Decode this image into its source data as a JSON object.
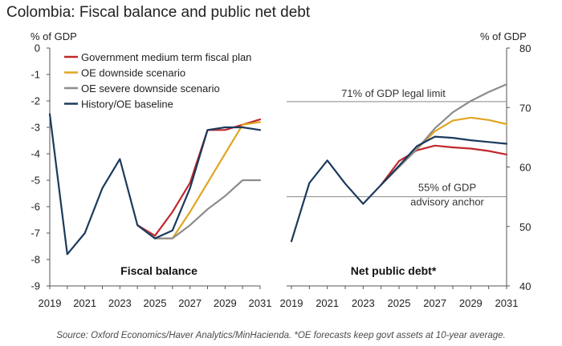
{
  "title": "Colombia: Fiscal balance and public net debt",
  "source": "Source: Oxford Economics/Haver Analytics/MinHacienda. *OE forecasts keep govt assets at 10-year average.",
  "colors": {
    "government": "#c0282d",
    "oe_downside": "#e0a624",
    "oe_severe": "#8c8c8c",
    "history": "#1b3a5c",
    "axis": "#555555",
    "reference": "#888888"
  },
  "chart_data": [
    {
      "type": "line",
      "title": "Fiscal balance",
      "ylabel": "% of GDP",
      "ylim": [
        -9,
        0
      ],
      "yticks": [
        0,
        -1,
        -2,
        -3,
        -4,
        -5,
        -6,
        -7,
        -8,
        -9
      ],
      "xlim": [
        2019,
        2031
      ],
      "xtick_labels": [
        "2019",
        "2021",
        "2023",
        "2025",
        "2027",
        "2029",
        "2031"
      ],
      "legend": [
        "Government medium term fiscal plan",
        "OE downside scenario",
        "OE severe downside scenario",
        "History/OE baseline"
      ],
      "series": [
        {
          "name": "Government medium term fiscal plan",
          "key": "government",
          "x": [
            2024,
            2025,
            2026,
            2027,
            2028,
            2029,
            2030,
            2031
          ],
          "values": [
            -6.7,
            -7.1,
            -6.2,
            -5.1,
            -3.1,
            -3.1,
            -2.9,
            -2.7
          ]
        },
        {
          "name": "OE downside scenario",
          "key": "oe_downside",
          "x": [
            2024,
            2025,
            2026,
            2027,
            2028,
            2029,
            2030,
            2031
          ],
          "values": [
            -6.7,
            -7.2,
            -7.2,
            -6.2,
            -5.1,
            -4.0,
            -2.9,
            -2.8
          ]
        },
        {
          "name": "OE severe downside scenario",
          "key": "oe_severe",
          "x": [
            2024,
            2025,
            2026,
            2027,
            2028,
            2029,
            2030,
            2031
          ],
          "values": [
            -6.7,
            -7.2,
            -7.2,
            -6.7,
            -6.1,
            -5.6,
            -5.0,
            -5.0
          ]
        },
        {
          "name": "History/OE baseline",
          "key": "history",
          "x": [
            2019,
            2020,
            2021,
            2022,
            2023,
            2024,
            2025,
            2026,
            2027,
            2028,
            2029,
            2030,
            2031
          ],
          "values": [
            -2.5,
            -7.8,
            -7.0,
            -5.3,
            -4.2,
            -6.7,
            -7.2,
            -6.9,
            -5.3,
            -3.1,
            -3.0,
            -3.0,
            -3.1
          ]
        }
      ]
    },
    {
      "type": "line",
      "title": "Net public debt*",
      "ylabel": "% of GDP",
      "ylim": [
        40,
        80
      ],
      "yticks": [
        80,
        70,
        60,
        50,
        40
      ],
      "xlim": [
        2019,
        2031
      ],
      "xtick_labels": [
        "2019",
        "2021",
        "2023",
        "2025",
        "2027",
        "2029",
        "2031"
      ],
      "reference_lines": [
        {
          "value": 71,
          "label": "71% of GDP legal limit"
        },
        {
          "value": 55,
          "label": "55% of GDP",
          "label2": "advisory anchor"
        }
      ],
      "series": [
        {
          "name": "Government medium term fiscal plan",
          "key": "government",
          "x": [
            2024,
            2025,
            2026,
            2027,
            2028,
            2029,
            2030,
            2031
          ],
          "values": [
            57.0,
            61.0,
            62.8,
            63.6,
            63.3,
            63.1,
            62.7,
            62.1
          ]
        },
        {
          "name": "OE downside scenario",
          "key": "oe_downside",
          "x": [
            2024,
            2025,
            2026,
            2027,
            2028,
            2029,
            2030,
            2031
          ],
          "values": [
            57.0,
            60.0,
            63.0,
            66.0,
            67.8,
            68.3,
            67.9,
            67.2
          ]
        },
        {
          "name": "OE severe downside scenario",
          "key": "oe_severe",
          "x": [
            2024,
            2025,
            2026,
            2027,
            2028,
            2029,
            2030,
            2031
          ],
          "values": [
            57.0,
            60.0,
            63.0,
            66.5,
            69.2,
            71.1,
            72.6,
            73.9
          ]
        },
        {
          "name": "History/OE baseline",
          "key": "history",
          "x": [
            2019,
            2020,
            2021,
            2022,
            2023,
            2024,
            2025,
            2026,
            2027,
            2028,
            2029,
            2030,
            2031
          ],
          "values": [
            47.5,
            57.3,
            61.1,
            57.2,
            53.8,
            57.0,
            60.2,
            63.5,
            65.1,
            64.9,
            64.5,
            64.2,
            63.9
          ]
        }
      ]
    }
  ]
}
